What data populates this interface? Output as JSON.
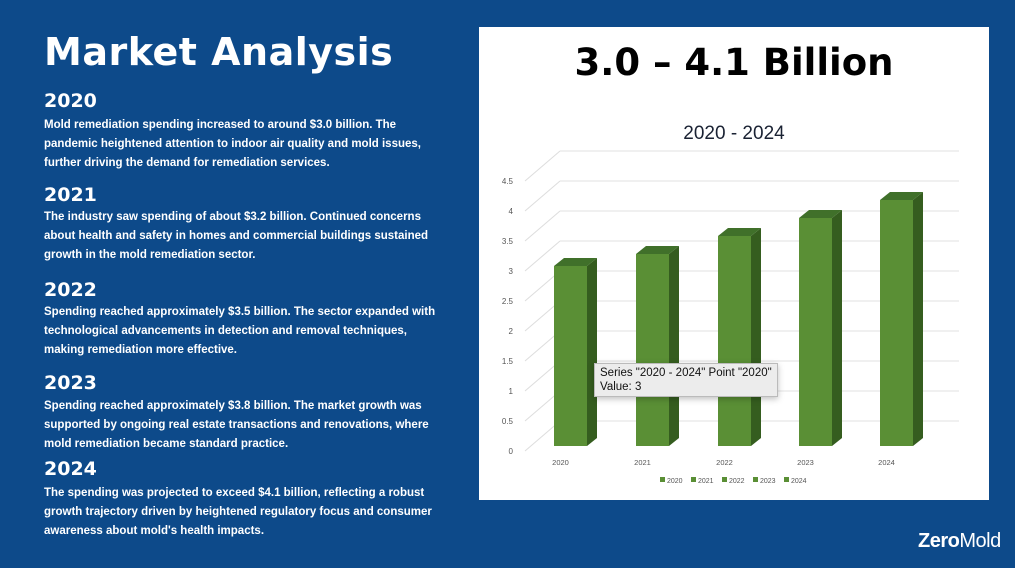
{
  "title": "Market Analysis",
  "sections": [
    {
      "year": "2020",
      "text": "Mold remediation spending increased to around $3.0 billion. The pandemic heightened attention to indoor air quality and mold issues, further driving the demand for remediation services."
    },
    {
      "year": "2021",
      "text": "The industry saw spending of about $3.2 billion. Continued concerns about health and safety in homes and commercial buildings sustained growth in the mold remediation sector."
    },
    {
      "year": "2022",
      "text": "Spending reached approximately $3.5 billion. The sector expanded with technological advancements in detection and removal techniques, making remediation more effective."
    },
    {
      "year": "2023",
      "text": "Spending reached approximately $3.8 billion. The market growth was supported by ongoing real estate transactions and renovations, where mold remediation became standard practice."
    },
    {
      "year": "2024",
      "text": "The spending was projected to exceed $4.1 billion, reflecting a robust growth trajectory driven by heightened regulatory focus and consumer awareness about mold's health impacts."
    }
  ],
  "headline": "3.0 – 4.1 Billion",
  "chart_data": {
    "type": "bar",
    "title": "2020 - 2024",
    "categories": [
      "2020",
      "2021",
      "2022",
      "2023",
      "2024"
    ],
    "series": [
      {
        "name": "2020 - 2024",
        "values": [
          3.0,
          3.2,
          3.5,
          3.8,
          4.1
        ]
      }
    ],
    "ylim": [
      0,
      4.5
    ],
    "yticks": [
      "0",
      "0.5",
      "1",
      "1.5",
      "2",
      "2.5",
      "3",
      "3.5",
      "4",
      "4.5"
    ],
    "legend": [
      "2020",
      "2021",
      "2022",
      "2023",
      "2024"
    ],
    "legend_position": "bottom",
    "grid": true,
    "style": "3d-column",
    "color": "#5a8f35"
  },
  "tooltip": {
    "line1": "Series \"2020 - 2024\" Point \"2020\"",
    "line2": "Value: 3"
  },
  "logo": {
    "text": "ZeroMold"
  }
}
